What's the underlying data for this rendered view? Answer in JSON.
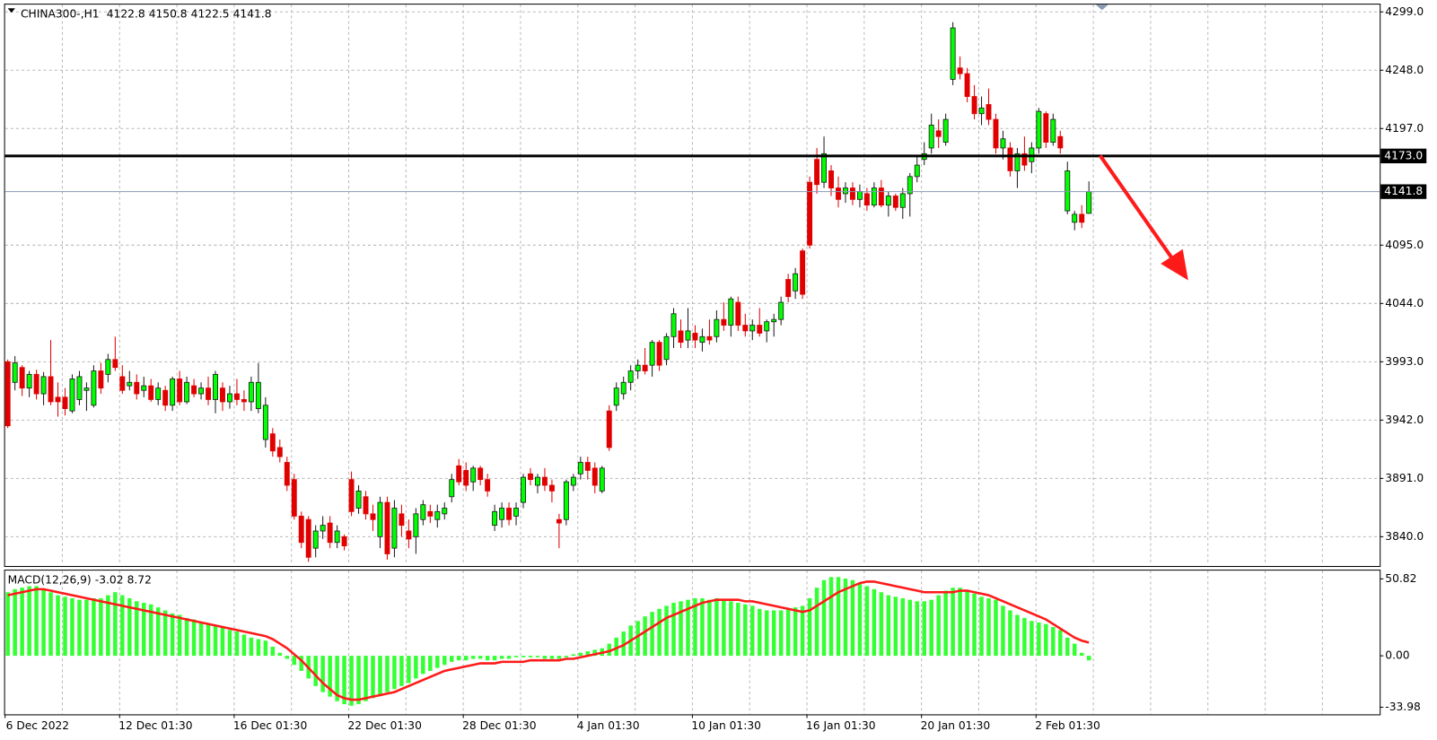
{
  "chart_data": {
    "type": "candlestick",
    "title": "CHINA300-,H1",
    "categories": [
      "6 Dec 2022",
      null,
      null,
      null,
      null,
      null,
      null,
      null,
      null,
      null,
      null,
      null,
      null,
      null,
      null,
      null,
      "12 Dec 01:30",
      null,
      null,
      null,
      null,
      null,
      null,
      null,
      null,
      null,
      null,
      null,
      null,
      null,
      null,
      null,
      "16 Dec 01:30",
      null,
      null,
      null,
      null,
      null,
      null,
      null,
      null,
      null,
      null,
      null,
      null,
      null,
      null,
      null,
      "22 Dec 01:30",
      null,
      null,
      null,
      null,
      null,
      null,
      null,
      null,
      null,
      null,
      null,
      null,
      null,
      null,
      null,
      "28 Dec 01:30",
      null,
      null,
      null,
      null,
      null,
      null,
      null,
      null,
      null,
      null,
      null,
      null,
      null,
      null,
      null,
      "4 Jan 01:30",
      null,
      null,
      null,
      null,
      null,
      null,
      null,
      null,
      null,
      null,
      null,
      null,
      null,
      null,
      null,
      "10 Jan 01:30",
      null,
      null,
      null,
      null,
      null,
      null,
      null,
      null,
      null,
      null,
      null,
      null,
      null,
      null,
      null,
      "16 Jan 01:30",
      null,
      null,
      null,
      null,
      null,
      null,
      null,
      null,
      null,
      null,
      null,
      null,
      null,
      null,
      null,
      "20 Jan 01:30",
      null,
      null,
      null,
      null,
      null,
      null,
      null,
      null,
      null,
      null,
      null,
      null,
      null,
      null,
      null,
      "2 Feb 01:30",
      null,
      null,
      null,
      null,
      null,
      null,
      null
    ],
    "open": [
      3993,
      3975,
      3988,
      3970,
      3982,
      3965,
      3980,
      3962,
      3962,
      3950,
      3960,
      3968,
      3955,
      3985,
      3982,
      3995,
      3980,
      3972,
      3975,
      3968,
      3972,
      3960,
      3968,
      3955,
      3978,
      3958,
      3972,
      3965,
      3970,
      3960,
      3970,
      3958,
      3965,
      3960,
      3958,
      3952,
      3925,
      3930,
      3918,
      3905,
      3890,
      3858,
      3855,
      3830,
      3845,
      3852,
      3835,
      3840,
      3890,
      3865,
      3875,
      3860,
      3840,
      3870,
      3830,
      3860,
      3845,
      3840,
      3855,
      3862,
      3855,
      3860,
      3875,
      3902,
      3898,
      3888,
      3900,
      3890,
      3850,
      3855,
      3865,
      3858,
      3870,
      3895,
      3885,
      3892,
      3885,
      3855,
      3855,
      3885,
      3895,
      3905,
      3900,
      3880,
      3950,
      3955,
      3965,
      3975,
      3985,
      3990,
      3990,
      4010,
      3995,
      4015,
      4020,
      4012,
      4018,
      4010,
      4015,
      4015,
      4030,
      4025,
      4045,
      4025,
      4020,
      4025,
      4020,
      4028,
      4030,
      4065,
      4055,
      4090,
      4150,
      4170,
      4150,
      4160,
      4145,
      4140,
      4145,
      4135,
      4140,
      4130,
      4145,
      4130,
      4138,
      4128,
      4140,
      4155,
      4170,
      4180,
      4195,
      4185,
      4240,
      4250,
      4245,
      4225,
      4210,
      4218,
      4205,
      4180,
      4180,
      4160,
      4175,
      4168,
      4180,
      4210,
      4185,
      4190,
      4125,
      4115,
      4122,
      4122.8
    ],
    "high": [
      3995,
      3998,
      3990,
      3985,
      3986,
      3984,
      4012,
      3975,
      3970,
      3982,
      3985,
      3975,
      3990,
      3992,
      4000,
      4015,
      3990,
      3985,
      3982,
      3980,
      3978,
      3975,
      3972,
      3980,
      3985,
      3980,
      3978,
      3975,
      3980,
      3985,
      3975,
      3972,
      3978,
      3968,
      3980,
      3992,
      3962,
      3935,
      3925,
      3910,
      3895,
      3862,
      3858,
      3850,
      3858,
      3858,
      3850,
      3842,
      3897,
      3885,
      3880,
      3868,
      3875,
      3875,
      3872,
      3868,
      3855,
      3865,
      3872,
      3868,
      3868,
      3870,
      3895,
      3908,
      3905,
      3902,
      3902,
      3895,
      3868,
      3870,
      3870,
      3870,
      3895,
      3900,
      3895,
      3900,
      3890,
      3860,
      3890,
      3895,
      3910,
      3910,
      3905,
      3902,
      3955,
      3975,
      3980,
      3990,
      3995,
      4005,
      4012,
      4012,
      4018,
      4040,
      4030,
      4040,
      4025,
      4022,
      4030,
      4038,
      4045,
      4050,
      4050,
      4035,
      4030,
      4040,
      4030,
      4035,
      4050,
      4070,
      4075,
      4092,
      4155,
      4180,
      4190,
      4165,
      4155,
      4150,
      4150,
      4148,
      4145,
      4150,
      4152,
      4142,
      4140,
      4145,
      4158,
      4172,
      4185,
      4210,
      4205,
      4210,
      4290,
      4260,
      4250,
      4235,
      4225,
      4232,
      4210,
      4195,
      4185,
      4180,
      4190,
      4185,
      4215,
      4212,
      4210,
      4195,
      4168,
      4125,
      4130,
      4150.8
    ],
    "low": [
      3935,
      3968,
      3963,
      3962,
      3960,
      3955,
      3955,
      3945,
      3946,
      3948,
      3955,
      3950,
      3953,
      3965,
      3975,
      3985,
      3965,
      3968,
      3960,
      3962,
      3958,
      3955,
      3950,
      3950,
      3955,
      3956,
      3962,
      3960,
      3955,
      3948,
      3950,
      3952,
      3955,
      3950,
      3950,
      3948,
      3918,
      3910,
      3905,
      3880,
      3855,
      3830,
      3818,
      3822,
      3838,
      3830,
      3830,
      3828,
      3858,
      3860,
      3855,
      3845,
      3830,
      3820,
      3822,
      3840,
      3830,
      3825,
      3850,
      3852,
      3848,
      3855,
      3870,
      3885,
      3880,
      3880,
      3885,
      3875,
      3845,
      3848,
      3850,
      3850,
      3865,
      3885,
      3878,
      3880,
      3870,
      3830,
      3850,
      3880,
      3890,
      3890,
      3878,
      3878,
      3915,
      3950,
      3960,
      3968,
      3978,
      3982,
      3980,
      3985,
      3990,
      4005,
      4005,
      4005,
      4005,
      4002,
      4008,
      4010,
      4020,
      4015,
      4020,
      4015,
      4012,
      4015,
      4010,
      4015,
      4025,
      4045,
      4048,
      4048,
      4092,
      4140,
      4145,
      4138,
      4128,
      4132,
      4130,
      4128,
      4125,
      4128,
      4128,
      4120,
      4125,
      4118,
      4120,
      4150,
      4165,
      4175,
      4180,
      4182,
      4235,
      4240,
      4220,
      4205,
      4200,
      4200,
      4175,
      4170,
      4155,
      4145,
      4160,
      4158,
      4175,
      4180,
      4182,
      4175,
      4122,
      4108,
      4110,
      4122.5
    ],
    "close": [
      3937,
      3992,
      3970,
      3982,
      3965,
      3980,
      3958,
      3958,
      3952,
      3978,
      3980,
      3970,
      3985,
      3970,
      3995,
      3988,
      3968,
      3975,
      3965,
      3972,
      3960,
      3970,
      3955,
      3978,
      3958,
      3975,
      3965,
      3970,
      3960,
      3982,
      3958,
      3965,
      3960,
      3958,
      3975,
      3975,
      3955,
      3915,
      3910,
      3885,
      3858,
      3835,
      3822,
      3845,
      3850,
      3835,
      3845,
      3832,
      3862,
      3880,
      3860,
      3855,
      3870,
      3825,
      3865,
      3850,
      3838,
      3860,
      3868,
      3858,
      3862,
      3865,
      3890,
      3888,
      3885,
      3900,
      3890,
      3880,
      3862,
      3865,
      3855,
      3865,
      3892,
      3890,
      3892,
      3885,
      3880,
      3852,
      3888,
      3892,
      3905,
      3898,
      3885,
      3900,
      3918,
      3970,
      3975,
      3985,
      3990,
      3985,
      4010,
      3990,
      4015,
      4035,
      4010,
      4020,
      4012,
      4015,
      4012,
      4030,
      4025,
      4048,
      4025,
      4020,
      4025,
      4018,
      4028,
      4030,
      4045,
      4050,
      4070,
      4052,
      4095,
      4148,
      4175,
      4145,
      4135,
      4145,
      4135,
      4142,
      4130,
      4145,
      4130,
      4138,
      4128,
      4140,
      4155,
      4165,
      4175,
      4200,
      4190,
      4205,
      4285,
      4245,
      4225,
      4210,
      4215,
      4205,
      4180,
      4188,
      4160,
      4175,
      4165,
      4180,
      4212,
      4185,
      4205,
      4180,
      4160,
      4122,
      4115,
      4141.8
    ],
    "up_color": "#00ff00",
    "down_color": "#e00000",
    "ylim": [
      3815.2,
      4305.4
    ],
    "yticks": [
      {
        "value": 4299,
        "label": "4299.0"
      },
      {
        "value": 4248,
        "label": "4248.0"
      },
      {
        "value": 4197,
        "label": "4197.0"
      },
      {
        "value": 4095,
        "label": "4095.0"
      },
      {
        "value": 4044,
        "label": "4044.0"
      },
      {
        "value": 3993,
        "label": "3993.0"
      },
      {
        "value": 3942,
        "label": "3942.0"
      },
      {
        "value": 3891,
        "label": "3891.0"
      },
      {
        "value": 3840,
        "label": "3840.0"
      }
    ],
    "grid": true,
    "level": {
      "value": 4173,
      "label": "4173.0"
    },
    "macd": {
      "title": "MACD(12,26,9)",
      "histogram": {
        "color": "#33ff33",
        "values": [
          42,
          44,
          45,
          46,
          46,
          44,
          42,
          40,
          39,
          38,
          37,
          37,
          38,
          38,
          40,
          42,
          40,
          38,
          36,
          35,
          34,
          32,
          30,
          28,
          27,
          25,
          24,
          22,
          21,
          20,
          19,
          17,
          16,
          14,
          12,
          11,
          10,
          6,
          2,
          -2,
          -6,
          -10,
          -15,
          -20,
          -24,
          -27,
          -30,
          -32,
          -33,
          -32,
          -30,
          -28,
          -26,
          -24,
          -22,
          -20,
          -18,
          -15,
          -12,
          -10,
          -8,
          -6,
          -4,
          -3,
          -3,
          -2,
          -2,
          -3,
          -3,
          -2,
          -2,
          -1,
          -1,
          -1,
          -1,
          -2,
          -2,
          -2,
          -1,
          1,
          2,
          3,
          4,
          5,
          8,
          12,
          16,
          20,
          23,
          26,
          29,
          31,
          33,
          35,
          36,
          37,
          38,
          38,
          37,
          38,
          37,
          36,
          35,
          34,
          33,
          31,
          30,
          30,
          30,
          31,
          32,
          33,
          38,
          45,
          50,
          52,
          52,
          51,
          50,
          48,
          46,
          44,
          42,
          40,
          39,
          38,
          37,
          36,
          36,
          37,
          40,
          43,
          45,
          45,
          43,
          41,
          39,
          38,
          37,
          33,
          30,
          27,
          25,
          23,
          22,
          21,
          19,
          17,
          12,
          8,
          2,
          -3.02
        ]
      },
      "signal": {
        "color": "#ff1a1a",
        "values": [
          40,
          41,
          42,
          43,
          44,
          44,
          43,
          42,
          41,
          40,
          39,
          38,
          37,
          36,
          35,
          34,
          33,
          32,
          31,
          30,
          29,
          28,
          27,
          26,
          25,
          24,
          23,
          22,
          21,
          20,
          19,
          18,
          17,
          16,
          15,
          14,
          13,
          11,
          8,
          5,
          1,
          -3,
          -8,
          -13,
          -18,
          -22,
          -26,
          -28,
          -29,
          -29,
          -28,
          -27,
          -26,
          -25,
          -24,
          -22,
          -20,
          -18,
          -16,
          -14,
          -12,
          -10,
          -9,
          -8,
          -7,
          -6,
          -5,
          -5,
          -5,
          -4,
          -4,
          -4,
          -4,
          -3,
          -3,
          -3,
          -3,
          -3,
          -2,
          -2,
          -1,
          0,
          1,
          2,
          3,
          5,
          7,
          10,
          13,
          16,
          19,
          22,
          25,
          27,
          29,
          31,
          33,
          35,
          36,
          37,
          37,
          37,
          37,
          36,
          36,
          35,
          34,
          33,
          32,
          31,
          30,
          29,
          30,
          33,
          36,
          39,
          42,
          44,
          46,
          48,
          49,
          49,
          48,
          47,
          46,
          45,
          44,
          43,
          42,
          42,
          42,
          42,
          42,
          43,
          43,
          42,
          41,
          40,
          38,
          36,
          34,
          32,
          30,
          28,
          26,
          24,
          21,
          18,
          15,
          12,
          10,
          8.72
        ]
      },
      "ylim": [
        -38.7,
        56.3
      ],
      "yticks": [
        50.82,
        {
          "value": 0,
          "label": "0.00"
        },
        -33.98
      ]
    }
  }
}
